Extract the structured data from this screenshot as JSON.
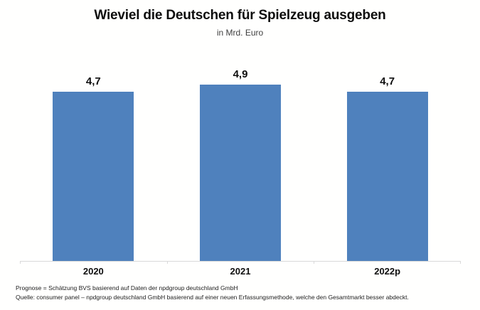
{
  "chart_data": {
    "type": "bar",
    "title": "Wieviel die Deutschen für Spielzeug ausgeben",
    "subtitle": "in Mrd. Euro",
    "categories": [
      "2020",
      "2021",
      "2022p"
    ],
    "values": [
      4.7,
      4.9,
      4.7
    ],
    "value_labels": [
      "4,7",
      "4,9",
      "4,7"
    ],
    "bar_color": "#4f81bd",
    "axis_color": "#d9d9d9",
    "grid": false,
    "legend_position": "none",
    "y_axis_visible": false
  },
  "footnotes": {
    "line1": "Prognose = Schätzung BVS basierend auf Daten der  npdgroup deutschland GmbH",
    "line2": "Quelle: consumer panel – npdgroup deutschland GmbH basierend auf einer neuen  Erfassungsmethode, welche den Gesamtmarkt besser abdeckt."
  }
}
